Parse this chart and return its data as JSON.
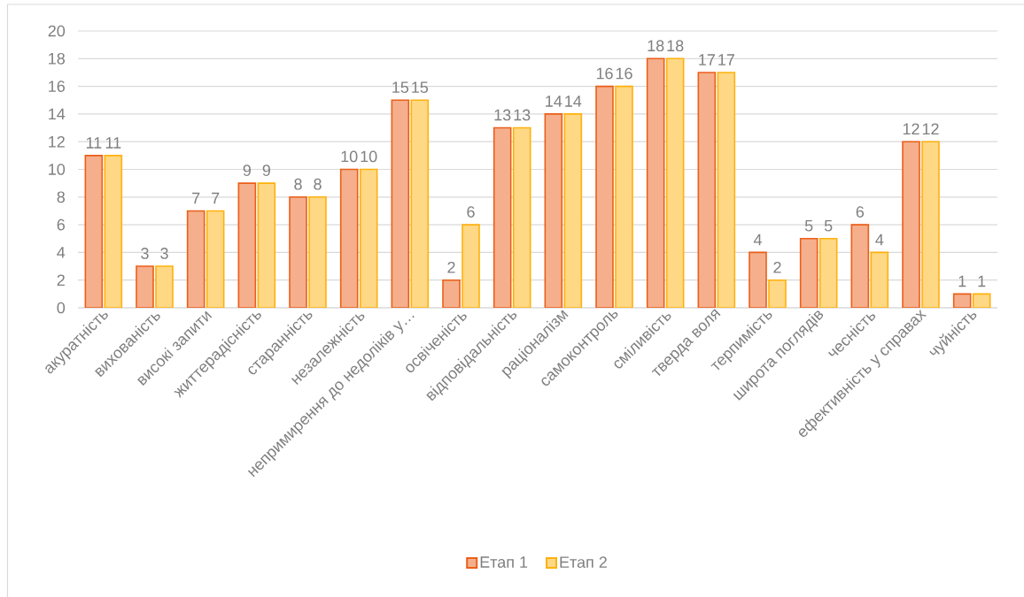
{
  "chart_data": {
    "type": "bar",
    "categories": [
      "акуратність",
      "вихованість",
      "високі запити",
      "життерадісність",
      "старанність",
      "незалежність",
      "непримирення до недоліків у…",
      "освіченість",
      "відповідальність",
      "раціоналізм",
      "самоконтроль",
      "сміливість",
      "тверда воля",
      "терпимість",
      "широта поглядів",
      "чесність",
      "ефективність у справах",
      "чуйність"
    ],
    "series": [
      {
        "name": "Етап 1",
        "color": "#F5AF8C",
        "values": [
          11,
          3,
          7,
          9,
          8,
          10,
          15,
          2,
          13,
          14,
          16,
          18,
          17,
          4,
          5,
          6,
          12,
          1
        ]
      },
      {
        "name": "Етап 2",
        "color": "#FFD886",
        "values": [
          11,
          3,
          7,
          9,
          8,
          10,
          15,
          6,
          13,
          14,
          16,
          18,
          17,
          2,
          5,
          4,
          12,
          1
        ]
      }
    ],
    "ylim": [
      0,
      20
    ],
    "yticks": [
      0,
      2,
      4,
      6,
      8,
      10,
      12,
      14,
      16,
      18,
      20
    ],
    "grid": "y",
    "legend": "bottom",
    "data_labels": true
  }
}
